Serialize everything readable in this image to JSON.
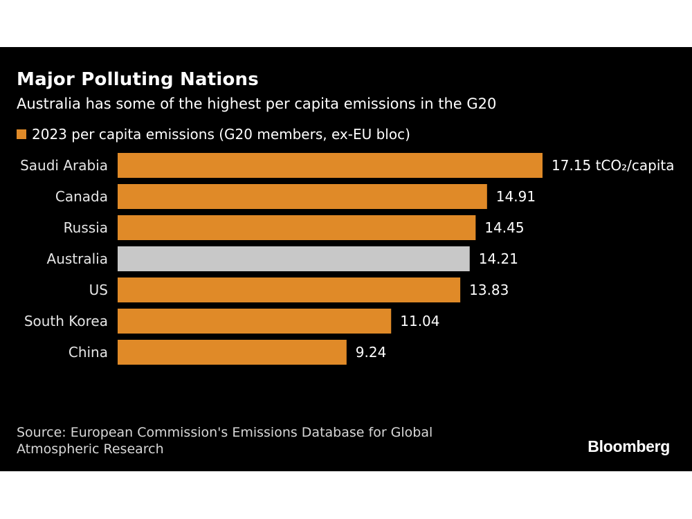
{
  "colors": {
    "background": "#000000",
    "accent": "#e08a28",
    "highlight": "#c8c8c8",
    "text": "#ffffff"
  },
  "header": {
    "title": "Major Polluting Nations",
    "subtitle": "Australia has some of the highest per capita emissions in the G20"
  },
  "legend": {
    "label": "2023 per capita emissions (G20 members, ex-EU bloc)"
  },
  "source": {
    "line1": "Source: European Commission's Emissions Database for Global",
    "line2": "Atmospheric Research"
  },
  "brand": "Bloomberg",
  "chart_data": {
    "type": "bar",
    "orientation": "horizontal",
    "title": "Major Polluting Nations",
    "subtitle": "Australia has some of the highest per capita emissions in the G20",
    "categories": [
      "Saudi Arabia",
      "Canada",
      "Russia",
      "Australia",
      "US",
      "South Korea",
      "China"
    ],
    "values": [
      17.15,
      14.91,
      14.45,
      14.21,
      13.83,
      11.04,
      9.24
    ],
    "value_labels": [
      "17.15 tCO₂/capita",
      "14.91",
      "14.45",
      "14.21",
      "13.83",
      "11.04",
      "9.24"
    ],
    "highlight": "Australia",
    "series": [
      {
        "name": "2023 per capita emissions (G20 members, ex-EU bloc)",
        "values": [
          17.15,
          14.91,
          14.45,
          14.21,
          13.83,
          11.04,
          9.24
        ]
      }
    ],
    "unit": "tCO₂/capita",
    "xlim": [
      0,
      17.15
    ],
    "grid": false,
    "legend": "top-left"
  }
}
